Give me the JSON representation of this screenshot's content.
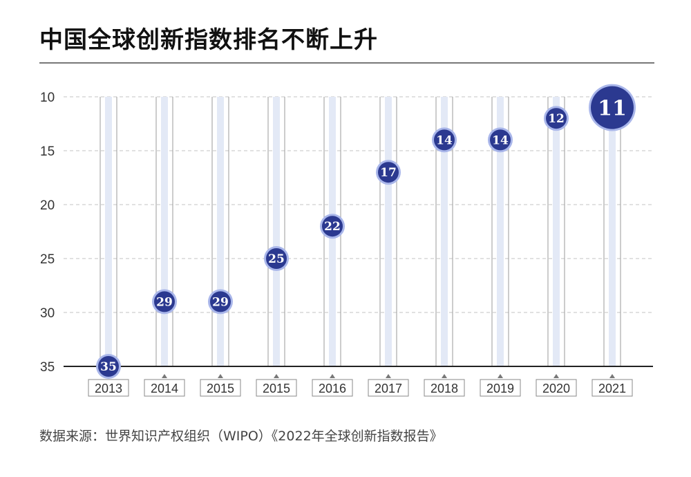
{
  "title": "中国全球创新指数排名不断上升",
  "source": "数据来源：世界知识产权组织（WIPO）《2022年全球创新指数报告》",
  "colors": {
    "marker_fill": "#2b3990",
    "marker_ring": "#a9b6ea",
    "highlight_fill": "#2b3990",
    "column_band": "#e3e9f6",
    "column_line": "#9a9a9a",
    "grid": "#cfcfcf",
    "axis": "#222222"
  },
  "chart_data": {
    "type": "scatter",
    "title": "中国全球创新指数排名不断上升",
    "xlabel": "",
    "ylabel": "",
    "y_inverted": true,
    "ylim": [
      10,
      35
    ],
    "yticks": [
      10,
      15,
      20,
      25,
      30,
      35
    ],
    "grid": true,
    "categories": [
      "2013",
      "2014",
      "2015",
      "2015",
      "2016",
      "2017",
      "2018",
      "2019",
      "2020",
      "2021"
    ],
    "values": [
      35,
      29,
      29,
      25,
      22,
      17,
      14,
      14,
      12,
      11
    ],
    "data_labels": [
      "35",
      "29",
      "29",
      "25",
      "22",
      "17",
      "14",
      "14",
      "12",
      "11"
    ],
    "highlight_index": 9
  }
}
